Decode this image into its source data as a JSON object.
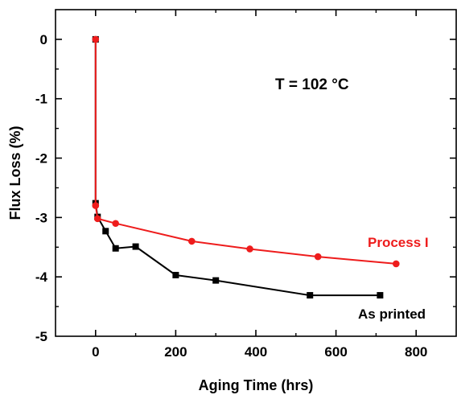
{
  "chart_data": {
    "type": "line",
    "xlabel": "Aging Time (hrs)",
    "ylabel": "Flux Loss (%)",
    "xlim": [
      -100,
      900
    ],
    "ylim": [
      -5,
      0.5
    ],
    "xticks": [
      0,
      200,
      400,
      600,
      800
    ],
    "yticks": [
      0,
      -1,
      -2,
      -3,
      -4,
      -5
    ],
    "xtick_labels": [
      "0",
      "200",
      "400",
      "600",
      "800"
    ],
    "ytick_labels": [
      "0",
      "-1",
      "-2",
      "-3",
      "-4",
      "-5"
    ],
    "grid": false,
    "annotation": "T = 102 °C",
    "series": [
      {
        "name": "Process I",
        "color": "#ee1c1c",
        "marker": "circle",
        "x": [
          0,
          0,
          5,
          50,
          240,
          385,
          555,
          750
        ],
        "y": [
          0,
          -2.8,
          -3.02,
          -3.1,
          -3.4,
          -3.53,
          -3.66,
          -3.78
        ]
      },
      {
        "name": "As printed",
        "color": "#000000",
        "marker": "square",
        "x": [
          0,
          0,
          5,
          25,
          50,
          100,
          200,
          300,
          535,
          710
        ],
        "y": [
          0,
          -2.76,
          -2.99,
          -3.23,
          -3.52,
          -3.49,
          -3.97,
          -4.06,
          -4.31,
          -4.31
        ]
      }
    ]
  }
}
